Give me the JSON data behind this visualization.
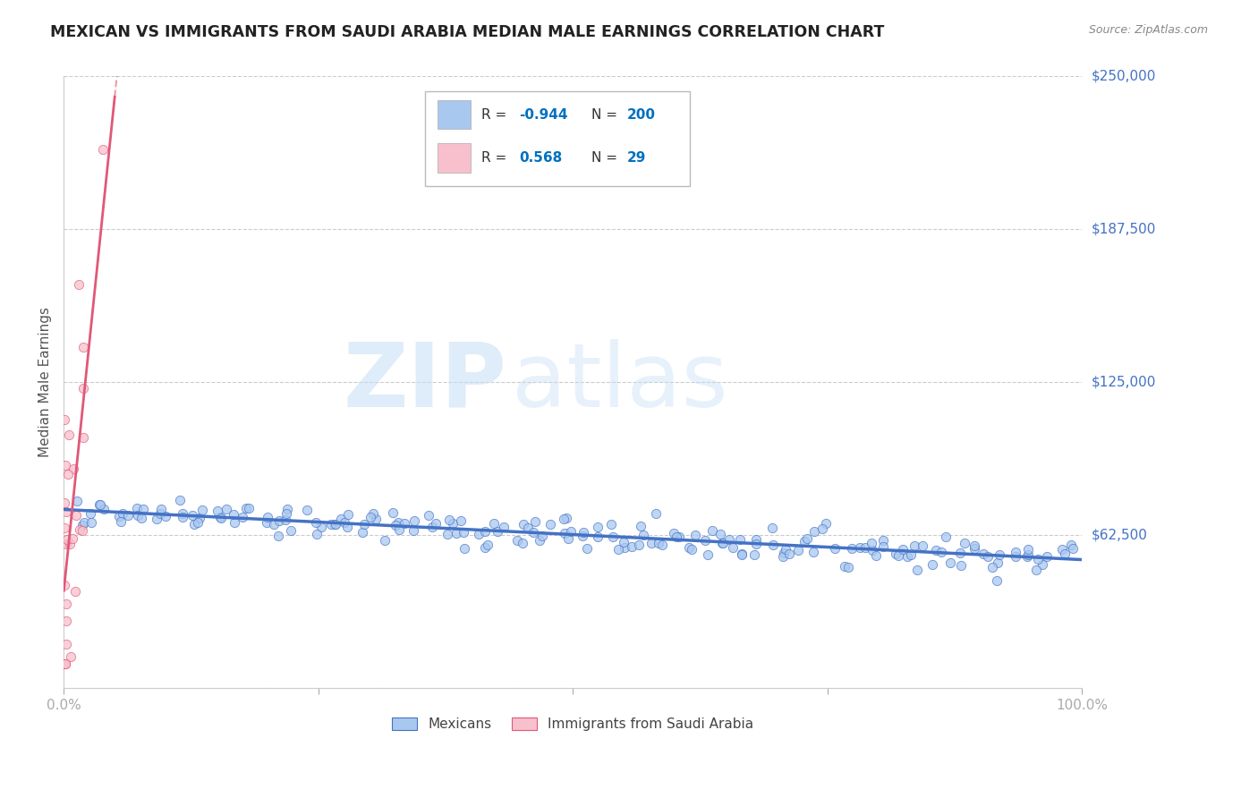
{
  "title": "MEXICAN VS IMMIGRANTS FROM SAUDI ARABIA MEDIAN MALE EARNINGS CORRELATION CHART",
  "source": "Source: ZipAtlas.com",
  "ylabel": "Median Male Earnings",
  "watermark_zip": "ZIP",
  "watermark_atlas": "atlas",
  "xlim": [
    0.0,
    1.0
  ],
  "ylim": [
    0,
    250000
  ],
  "yticks": [
    0,
    62500,
    125000,
    187500,
    250000
  ],
  "ytick_labels": [
    "",
    "$62,500",
    "$125,000",
    "$187,500",
    "$250,000"
  ],
  "xticks": [
    0.0,
    0.25,
    0.5,
    0.75,
    1.0
  ],
  "xtick_labels": [
    "0.0%",
    "",
    "",
    "",
    "100.0%"
  ],
  "mexicans": {
    "color": "#a8c8f0",
    "line_color": "#4472c4",
    "label": "Mexicans",
    "R": -0.944,
    "N": 200
  },
  "saudi": {
    "color": "#f8c0cc",
    "line_color": "#e05878",
    "label": "Immigrants from Saudi Arabia",
    "R": 0.568,
    "N": 29
  },
  "legend_text_color": "#0070c0",
  "legend_label_color": "#333333",
  "title_color": "#222222",
  "axis_color": "#4472c4",
  "background_color": "#ffffff",
  "grid_color": "#cccccc",
  "source_color": "#888888"
}
